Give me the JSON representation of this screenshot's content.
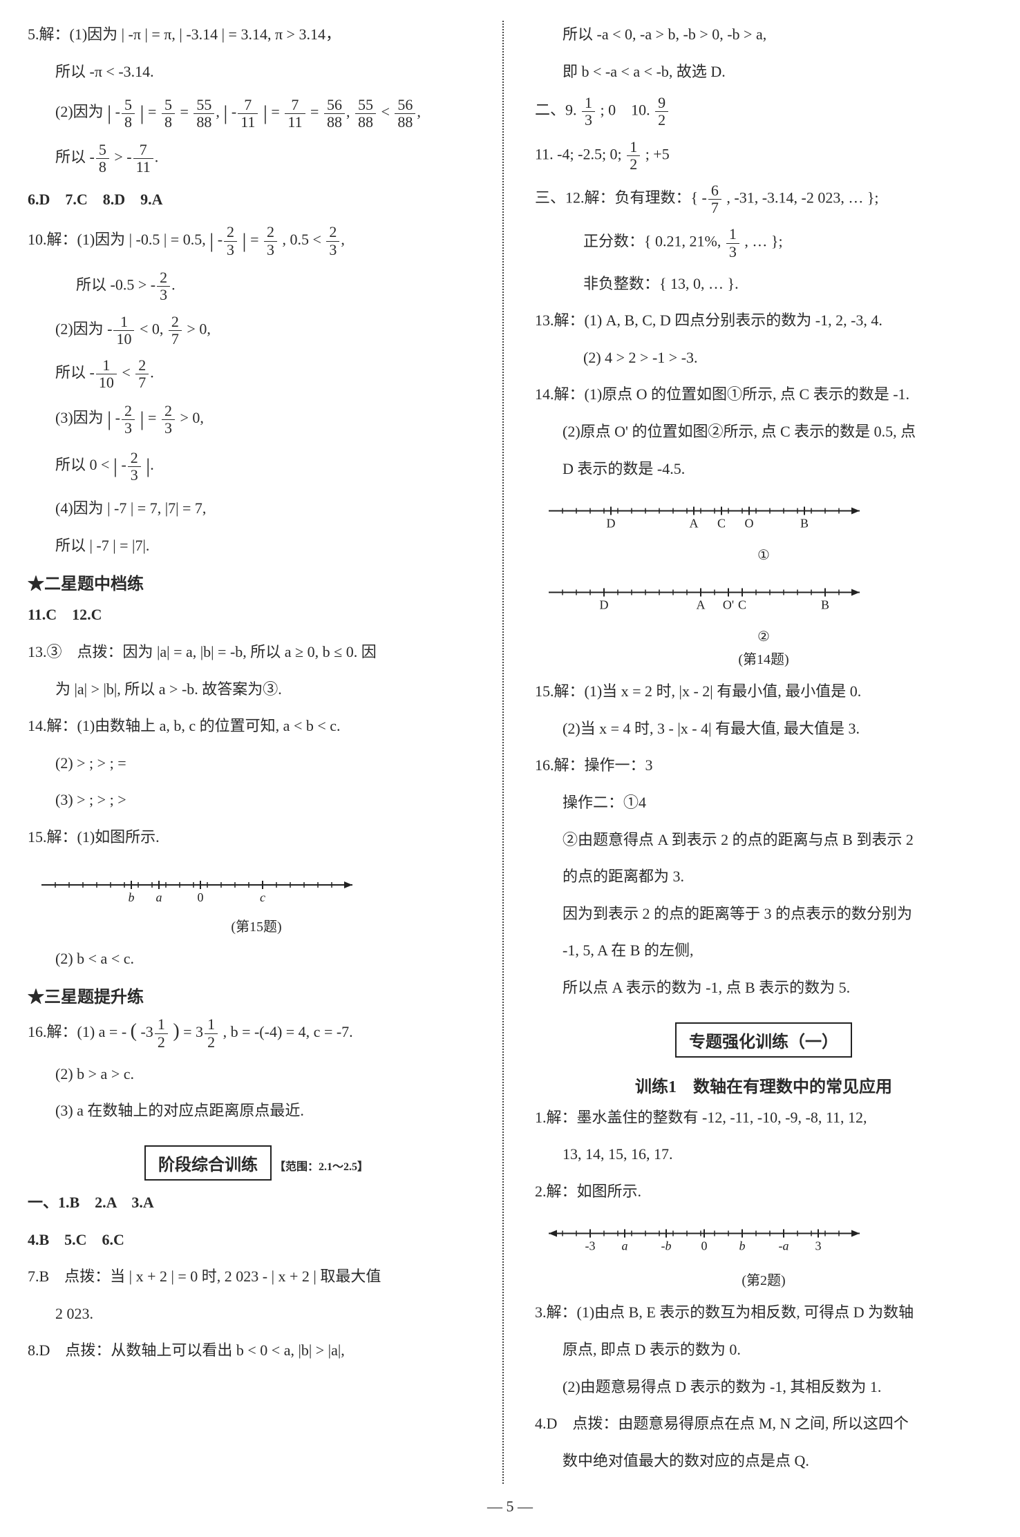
{
  "left": {
    "q5": {
      "p1": "5.解：(1)因为 | -π | = π, | -3.14 | = 3.14, π > 3.14，",
      "p2": "所以 -π < -3.14.",
      "p3a": "(2)因为 ",
      "p3b": "所以 ",
      "abs58": {
        "num": "5",
        "den": "8"
      },
      "eq58": {
        "num": "5",
        "den": "8"
      },
      "eq5588": {
        "num": "55",
        "den": "88"
      },
      "abs711": {
        "num": "7",
        "den": "11"
      },
      "eq711": {
        "num": "7",
        "den": "11"
      },
      "eq5688": {
        "num": "56",
        "den": "88"
      },
      "cmp1": ",",
      "cmp_lt": " < ",
      "gt": " > "
    },
    "q6_9": "6.D　7.C　8.D　9.A",
    "q10": {
      "p1": "10.解：(1)因为 | -0.5 | = 0.5, ",
      "f23": {
        "num": "2",
        "den": "3"
      },
      "p1b": ", 0.5 < ",
      "p2": "所以 -0.5 > -",
      "p3": "(2)因为 -",
      "f110": {
        "num": "1",
        "den": "10"
      },
      "p3b": " < 0, ",
      "f27": {
        "num": "2",
        "den": "7"
      },
      "p3c": " > 0,",
      "p4": "所以 -",
      "p4b": " < ",
      "p5": "(3)因为 ",
      "p5b": " > 0,",
      "p6": "所以 0 < ",
      "p7": "(4)因为 | -7 | = 7, |7| = 7,",
      "p8": "所以 | -7 | = |7|."
    },
    "star2": "★二星题中档练",
    "q11_12": "11.C　12.C",
    "q13": {
      "p1": "13.③　点拨：因为 |a| = a, |b| = -b, 所以 a ≥ 0, b ≤ 0. 因",
      "p2": "为 |a| > |b|, 所以 a > -b. 故答案为③."
    },
    "q14": {
      "p1": "14.解：(1)由数轴上 a, b, c 的位置可知, a < b < c.",
      "p2": "(2) > ; > ; =",
      "p3": "(3) > ; > ; >"
    },
    "q15": {
      "p1": "15.解：(1)如图所示.",
      "nl_caption": "(第15题)",
      "p2": "(2) b < a < c."
    },
    "star3": "★三星题提升练",
    "q16": {
      "p1a": "16.解：(1) a = -",
      "p1a2": "( -3",
      "half": {
        "num": "1",
        "den": "2"
      },
      "p1a3": " ) = 3",
      "p1b": ", b = -(-4) = 4, c = -7.",
      "p2": "(2) b > a > c.",
      "p3": "(3) a 在数轴上的对应点距离原点最近."
    },
    "stage_box": "阶段综合训练",
    "stage_range": "【范围：2.1～2.5】",
    "s1_3": "一、1.B　2.A　3.A",
    "s4_6": "4.B　5.C　6.C",
    "s7": {
      "p1": "7.B　点拨：当 | x + 2 | = 0 时, 2 023 - | x + 2 | 取最大值",
      "p2": "2 023."
    },
    "s8": "8.D　点拨：从数轴上可以看出 b < 0 < a, |b| > |a|,"
  },
  "right": {
    "s8b": {
      "p1": "所以 -a < 0, -a > b, -b > 0, -b > a,",
      "p2": "即 b < -a < a < -b, 故选 D."
    },
    "sec2": {
      "p1a": "二、9. ",
      "f13": {
        "num": "1",
        "den": "3"
      },
      "p1b": "; 0　10. ",
      "f92": {
        "num": "9",
        "den": "2"
      }
    },
    "q11": {
      "p1a": "11. -4; -2.5; 0; ",
      "f12": {
        "num": "1",
        "den": "2"
      },
      "p1b": "; +5"
    },
    "sec3_q12": {
      "p1a": "三、12.解：负有理数：{ -",
      "f67": {
        "num": "6",
        "den": "7"
      },
      "p1b": ", -31, -3.14, -2 023, … };",
      "p2a": "正分数：{ 0.21, 21%, ",
      "f13": {
        "num": "1",
        "den": "3"
      },
      "p2b": ", … };",
      "p3": "非负整数：{ 13, 0, … }."
    },
    "q13r": {
      "p1": "13.解：(1) A, B, C, D 四点分别表示的数为 -1, 2, -3, 4.",
      "p2": "(2) 4 > 2 > -1 > -3."
    },
    "q14r": {
      "p1": "14.解：(1)原点 O 的位置如图①所示, 点 C 表示的数是 -1.",
      "p2": "(2)原点 O' 的位置如图②所示, 点 C 表示的数是 0.5, 点",
      "p3": "D 表示的数是 -4.5.",
      "caption": "(第14题)",
      "nl1_labels": [
        "D",
        "A",
        "C",
        "O",
        "B"
      ],
      "nl1_tag": "①",
      "nl2_labels": [
        "D",
        "A",
        "O'",
        "C",
        "B"
      ],
      "nl2_tag": "②"
    },
    "q15r": {
      "p1": "15.解：(1)当 x = 2 时, |x - 2| 有最小值, 最小值是 0.",
      "p2": "(2)当 x = 4 时, 3 - |x - 4| 有最大值, 最大值是 3."
    },
    "q16r": {
      "p1": "16.解：操作一：3",
      "p2": "操作二：①4",
      "p3": "②由题意得点 A 到表示 2 的点的距离与点 B 到表示 2",
      "p4": "的点的距离都为 3.",
      "p5": "因为到表示 2 的点的距离等于 3 的点表示的数分别为",
      "p6": "-1, 5, A 在 B 的左侧,",
      "p7": "所以点 A 表示的数为 -1, 点 B 表示的数为 5."
    },
    "topic_box": "专题强化训练（一）",
    "train1": "训练1　数轴在有理数中的常见应用",
    "t1": {
      "p1": "1.解：墨水盖住的整数有 -12, -11, -10, -9, -8, 11, 12,",
      "p2": "13, 14, 15, 16, 17."
    },
    "t2": {
      "p1": "2.解：如图所示.",
      "caption": "(第2题)",
      "labels": [
        "-3",
        "a",
        "-b",
        "0",
        "b",
        "-a",
        "3"
      ]
    },
    "t3": {
      "p1": "3.解：(1)由点 B, E 表示的数互为相反数, 可得点 D 为数轴",
      "p2": "原点, 即点 D 表示的数为 0.",
      "p3": "(2)由题意易得点 D 表示的数为 -1, 其相反数为 1."
    },
    "t4": {
      "p1": "4.D　点拨：由题意易得原点在点 M, N 之间, 所以这四个",
      "p2": "数中绝对值最大的数对应的点是点 Q."
    }
  },
  "page_num": "— 5 —",
  "q15_nl_labels": [
    "b",
    "a",
    "0",
    "c"
  ]
}
